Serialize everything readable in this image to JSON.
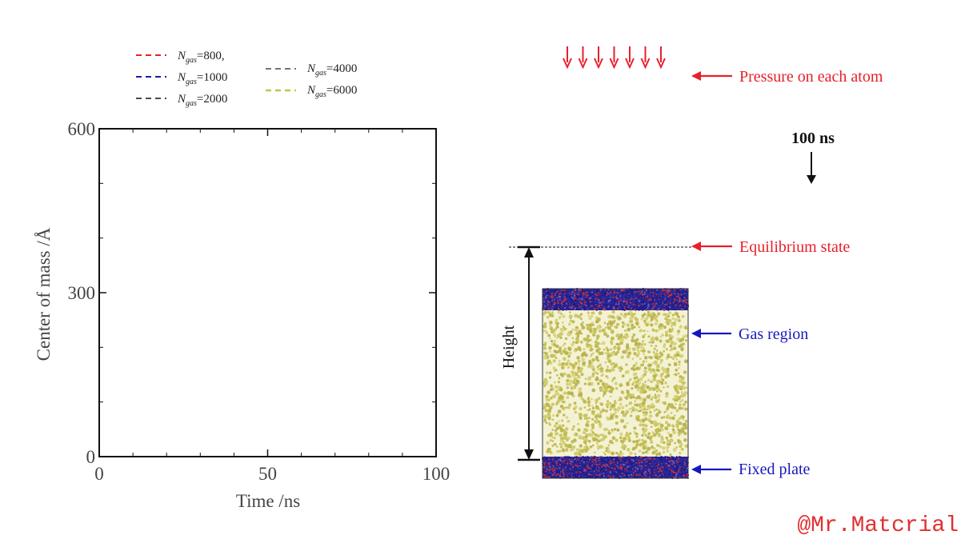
{
  "chart_data": {
    "type": "line",
    "title": "",
    "xlabel": "Time /ns",
    "ylabel": "Center of mass /Å",
    "xlim": [
      0,
      100
    ],
    "ylim": [
      0,
      600
    ],
    "xticks": [
      "0",
      "50",
      "100"
    ],
    "yticks": [
      "0",
      "300",
      "600"
    ],
    "grid": false,
    "legend_position": "top-left, above plot",
    "series": [
      {
        "name": "N_gas=800,",
        "color": "#e8202a",
        "x": [],
        "y": []
      },
      {
        "name": "N_gas=1000",
        "color": "#1a1aa8",
        "x": [],
        "y": []
      },
      {
        "name": "N_gas=2000",
        "color": "#111111",
        "x": [],
        "y": []
      },
      {
        "name": "N_gas=4000",
        "color": "#222222",
        "x": [],
        "y": []
      },
      {
        "name": "N_gas=6000",
        "color": "#c8c24a",
        "x": [],
        "y": []
      }
    ]
  },
  "legend": [
    {
      "sym": "N",
      "sub": "gas",
      "rest": "=800,",
      "color": "#e8202a"
    },
    {
      "sym": "N",
      "sub": "gas",
      "rest": "=1000",
      "color": "#1a1aa8"
    },
    {
      "sym": "N",
      "sub": "gas",
      "rest": "=2000",
      "color": "#111111"
    },
    {
      "sym": "N",
      "sub": "gas",
      "rest": "=4000",
      "color": "#222222"
    },
    {
      "sym": "N",
      "sub": "gas",
      "rest": "=6000",
      "color": "#c8c24a"
    }
  ],
  "diagram": {
    "time_label": "100 ns",
    "height_label": "Height",
    "annotations": {
      "pressure": "Pressure on each atom",
      "equilibrium": "Equilibrium state",
      "gas": "Gas region",
      "plate": "Fixed plate"
    },
    "colors": {
      "red": "#e8202a",
      "blue": "#1717c0",
      "gas": "#c9c55e",
      "plate_blue": "#2a2a9a",
      "plate_red": "#b02030"
    },
    "pressure_arrow_count": 7
  },
  "watermark": "@Mr.Matcrial"
}
